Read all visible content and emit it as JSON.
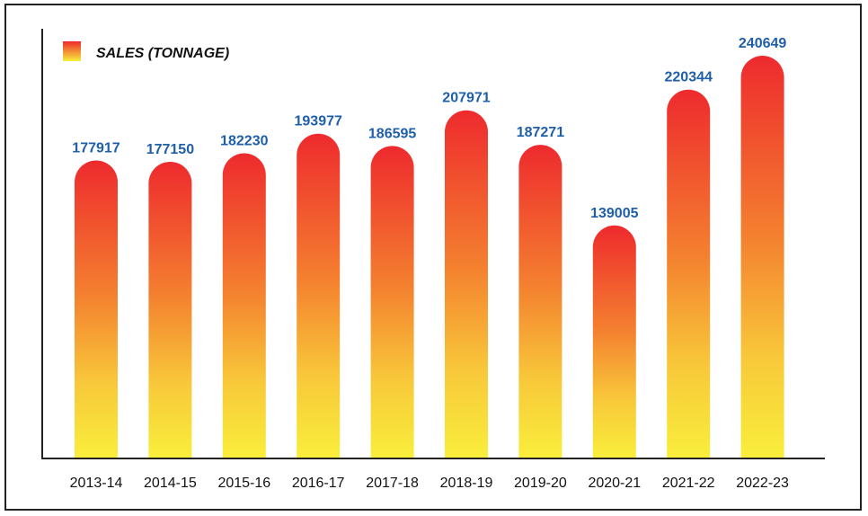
{
  "chart_data": {
    "type": "bar",
    "categories": [
      "2013-14",
      "2014-15",
      "2015-16",
      "2016-17",
      "2017-18",
      "2018-19",
      "2019-20",
      "2020-21",
      "2021-22",
      "2022-23"
    ],
    "series": [
      {
        "name": "SALES (TONNAGE)",
        "values": [
          177917,
          177150,
          182230,
          193977,
          186595,
          207971,
          187271,
          139005,
          220344,
          240649
        ],
        "data_labels": [
          "177917",
          "177150",
          "182230",
          "193977",
          "186595",
          "207971",
          "187271",
          "139005",
          "220344",
          "240649"
        ]
      }
    ],
    "legend": "top-left",
    "grid": false,
    "colors": {
      "bar_top": "#ee2a2e",
      "bar_mid": "#f6a132",
      "bar_bottom": "#f9ee3b",
      "value_label": "#1f5faa",
      "axis": "#222222"
    }
  }
}
